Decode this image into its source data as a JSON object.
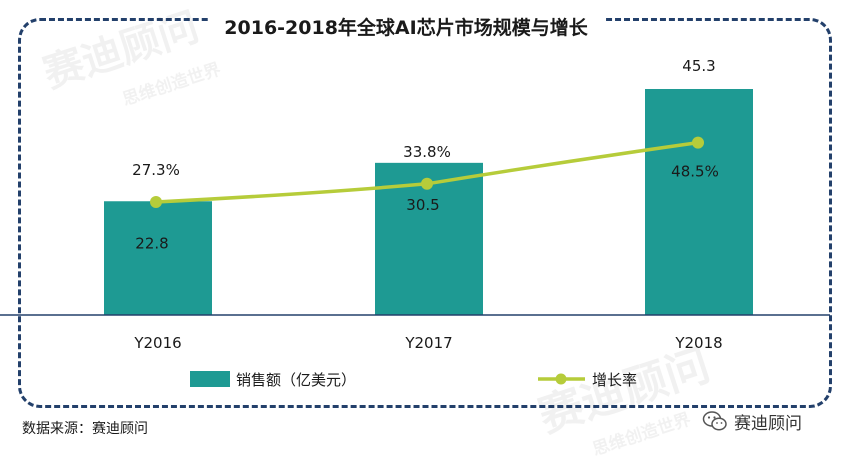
{
  "chart_data": {
    "type": "bar",
    "title": "2016-2018年全球AI芯片市场规模与增长",
    "categories": [
      "Y2016",
      "Y2017",
      "Y2018"
    ],
    "series": [
      {
        "name": "销售额（亿美元）",
        "type": "bar",
        "values": [
          22.8,
          30.5,
          45.3
        ],
        "labels": [
          "22.8",
          "30.5",
          "45.3"
        ],
        "color": "#1e9a93"
      },
      {
        "name": "增长率",
        "type": "line",
        "values": [
          27.3,
          33.8,
          48.5
        ],
        "labels": [
          "27.3%",
          "33.8%",
          "48.5%"
        ],
        "color": "#b6cc3a"
      }
    ],
    "legend_position": "bottom",
    "grid": false
  },
  "source_text": "数据来源：赛迪顾问",
  "brand_text": "赛迪顾问",
  "watermark_text": "赛迪顾问",
  "watermark_sub": "思维创造世界",
  "colors": {
    "frame": "#23406b",
    "axis": "#23406b"
  }
}
